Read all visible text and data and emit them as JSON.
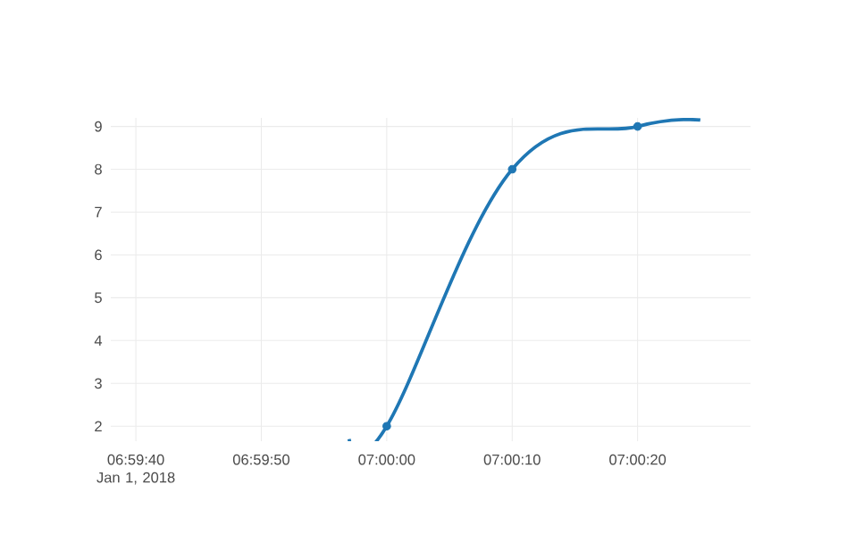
{
  "chart_data": {
    "type": "line",
    "series": [
      {
        "color": "#1f77b4",
        "marker": "none",
        "x": [
          "2018-01-01T06:59:57",
          "2018-01-01T07:00:00",
          "2018-01-01T07:00:10",
          "2018-01-01T07:00:20",
          "2018-01-01T07:00:25"
        ],
        "values": [
          1.7,
          2,
          8,
          9,
          9.15
        ]
      },
      {
        "type": "scatter",
        "color": "#1f77b4",
        "marker": "circle",
        "x": [
          "2018-01-01T07:00:00",
          "2018-01-01T07:00:10",
          "2018-01-01T07:00:20"
        ],
        "values": [
          2,
          8,
          9
        ]
      }
    ],
    "xlim": [
      "2018-01-01T06:59:38",
      "2018-01-01T07:00:29"
    ],
    "xticks": [
      {
        "value": "2018-01-01T06:59:40",
        "label": "06:59:40 Jan 1, 2018"
      },
      {
        "value": "2018-01-01T06:59:50",
        "label": "06:59:50"
      },
      {
        "value": "2018-01-01T07:00:00",
        "label": "07:00:00"
      },
      {
        "value": "2018-01-01T07:00:10",
        "label": "07:00:10"
      },
      {
        "value": "2018-01-01T07:00:20",
        "label": "07:00:20"
      }
    ],
    "ylim": [
      1.65,
      9.2
    ],
    "yticks": [
      2,
      3,
      4,
      5,
      6,
      7,
      8,
      9
    ],
    "grid": true
  }
}
